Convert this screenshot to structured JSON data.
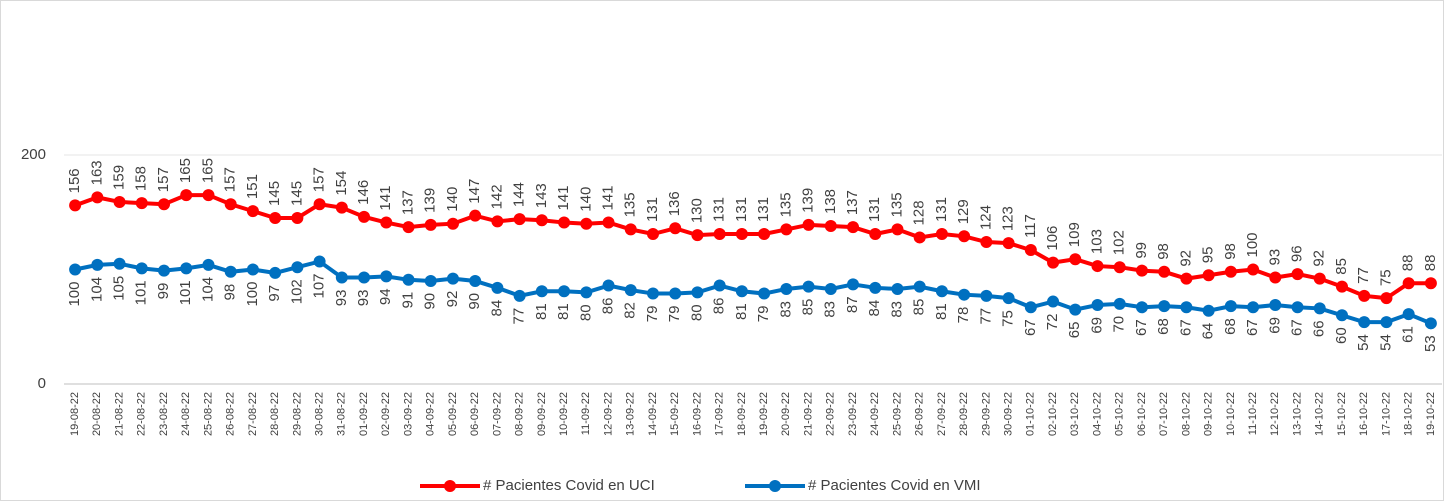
{
  "chart_data": {
    "type": "line",
    "categories": [
      "19-08-22",
      "20-08-22",
      "21-08-22",
      "22-08-22",
      "23-08-22",
      "24-08-22",
      "25-08-22",
      "26-08-22",
      "27-08-22",
      "28-08-22",
      "29-08-22",
      "30-08-22",
      "31-08-22",
      "01-09-22",
      "02-09-22",
      "03-09-22",
      "04-09-22",
      "05-09-22",
      "06-09-22",
      "07-09-22",
      "08-09-22",
      "09-09-22",
      "10-09-22",
      "11-09-22",
      "12-09-22",
      "13-09-22",
      "14-09-22",
      "15-09-22",
      "16-09-22",
      "17-09-22",
      "18-09-22",
      "19-09-22",
      "20-09-22",
      "21-09-22",
      "22-09-22",
      "23-09-22",
      "24-09-22",
      "25-09-22",
      "26-09-22",
      "27-09-22",
      "28-09-22",
      "29-09-22",
      "30-09-22",
      "01-10-22",
      "02-10-22",
      "03-10-22",
      "04-10-22",
      "05-10-22",
      "06-10-22",
      "07-10-22",
      "08-10-22",
      "09-10-22",
      "10-10-22",
      "11-10-22",
      "12-10-22",
      "13-10-22",
      "14-10-22",
      "15-10-22",
      "16-10-22",
      "17-10-22",
      "18-10-22",
      "19-10-22"
    ],
    "series": [
      {
        "name": "# Pacientes Covid en UCI",
        "color": "#ff0000",
        "values": [
          156,
          163,
          159,
          158,
          157,
          165,
          165,
          157,
          151,
          145,
          145,
          157,
          154,
          146,
          141,
          137,
          139,
          140,
          147,
          142,
          144,
          143,
          141,
          140,
          141,
          135,
          131,
          136,
          130,
          131,
          131,
          131,
          135,
          139,
          138,
          137,
          131,
          135,
          128,
          131,
          129,
          124,
          123,
          117,
          106,
          109,
          103,
          102,
          99,
          98,
          92,
          95,
          98,
          100,
          93,
          96,
          92,
          85,
          77,
          75,
          88,
          88
        ]
      },
      {
        "name": "# Pacientes Covid en VMI",
        "color": "#0070c0",
        "values": [
          100,
          104,
          105,
          101,
          99,
          101,
          104,
          98,
          100,
          97,
          102,
          107,
          93,
          93,
          94,
          91,
          90,
          92,
          90,
          84,
          77,
          81,
          81,
          80,
          86,
          82,
          79,
          79,
          80,
          86,
          81,
          79,
          83,
          85,
          83,
          87,
          84,
          83,
          85,
          81,
          78,
          77,
          75,
          67,
          72,
          65,
          69,
          70,
          67,
          68,
          67,
          64,
          68,
          67,
          69,
          67,
          66,
          60,
          54,
          54,
          61,
          53
        ]
      }
    ],
    "ylim": [
      0,
      300
    ],
    "yticks": [
      0,
      200
    ],
    "grid": true,
    "legend": "bottom"
  }
}
